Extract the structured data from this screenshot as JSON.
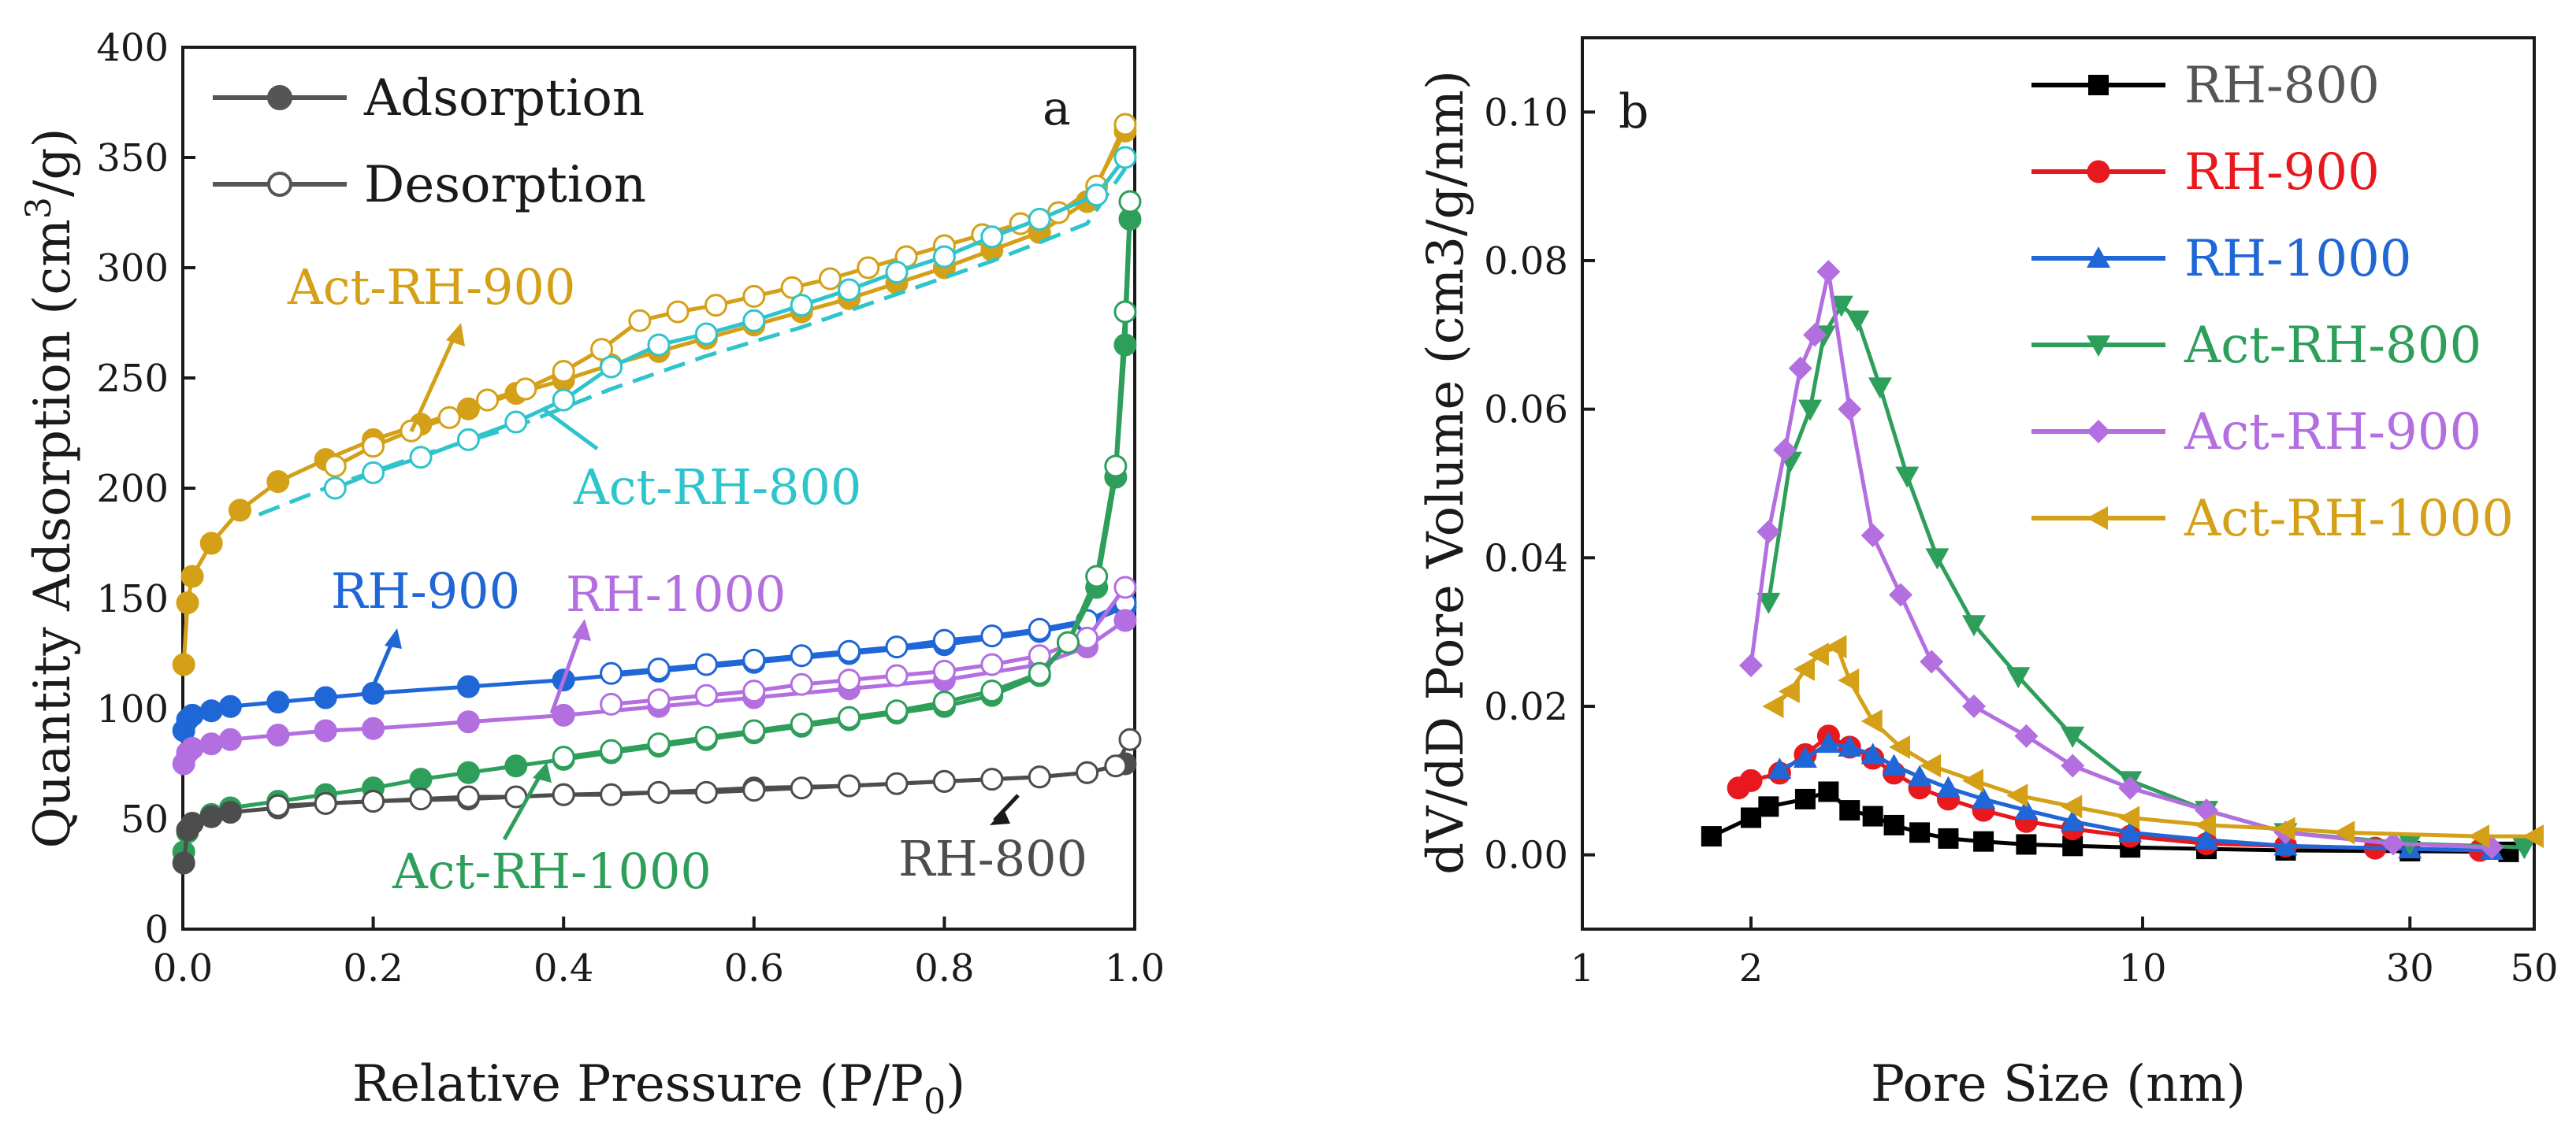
{
  "chart_data": [
    {
      "panel_label": "a",
      "type": "line",
      "title": "",
      "xlabel": "Relative Pressure (P/P",
      "xlabel_sub": "0",
      "xlabel_end": ")",
      "ylabel": "Quantity Adsorption (cm",
      "ylabel_sup": "3",
      "ylabel_end": "/g)",
      "xlim": [
        0,
        1.0
      ],
      "ylim": [
        0,
        400
      ],
      "xticks": [
        "0.0",
        "0.2",
        "0.4",
        "0.6",
        "0.8",
        "1.0"
      ],
      "yticks": [
        "0",
        "50",
        "100",
        "150",
        "200",
        "250",
        "300",
        "350",
        "400"
      ],
      "xtick_values": [
        0,
        0.2,
        0.4,
        0.6,
        0.8,
        1.0
      ],
      "ytick_values": [
        0,
        50,
        100,
        150,
        200,
        250,
        300,
        350,
        400
      ],
      "legend": [
        {
          "label": "Adsorption",
          "marker": "filled-circle",
          "color": "#555555"
        },
        {
          "label": "Desorption",
          "marker": "open-circle",
          "color": "#555555"
        }
      ],
      "series": [
        {
          "name": "Act-RH-900",
          "color": "#d4a017",
          "branch": "adsorption",
          "x": [
            0.001,
            0.005,
            0.01,
            0.03,
            0.06,
            0.1,
            0.15,
            0.2,
            0.25,
            0.3,
            0.35,
            0.4,
            0.45,
            0.5,
            0.55,
            0.6,
            0.65,
            0.7,
            0.75,
            0.8,
            0.85,
            0.9,
            0.95,
            0.99
          ],
          "y": [
            120,
            148,
            160,
            175,
            190,
            203,
            213,
            222,
            229,
            236,
            243,
            249,
            256,
            262,
            268,
            274,
            280,
            286,
            293,
            300,
            308,
            316,
            330,
            362
          ]
        },
        {
          "name": "Act-RH-900",
          "color": "#d4a017",
          "branch": "desorption",
          "x": [
            0.99,
            0.96,
            0.92,
            0.88,
            0.84,
            0.8,
            0.76,
            0.72,
            0.68,
            0.64,
            0.6,
            0.56,
            0.52,
            0.48,
            0.44,
            0.4,
            0.36,
            0.32,
            0.28,
            0.24,
            0.2,
            0.16
          ],
          "y": [
            365,
            337,
            325,
            320,
            315,
            310,
            305,
            300,
            295,
            291,
            287,
            283,
            280,
            276,
            263,
            253,
            245,
            240,
            232,
            226,
            219,
            210
          ]
        },
        {
          "name": "Act-RH-800",
          "color": "#2ec4cc",
          "branch": "adsorption",
          "x": [
            0.08,
            0.15,
            0.25,
            0.35,
            0.45,
            0.55,
            0.65,
            0.75,
            0.85,
            0.95,
            0.99
          ],
          "y": [
            188,
            200,
            215,
            228,
            245,
            260,
            273,
            288,
            303,
            320,
            345
          ]
        },
        {
          "name": "Act-RH-800",
          "color": "#2ec4cc",
          "branch": "desorption",
          "x": [
            0.99,
            0.96,
            0.9,
            0.85,
            0.8,
            0.75,
            0.7,
            0.65,
            0.6,
            0.55,
            0.5,
            0.45,
            0.4,
            0.35,
            0.3,
            0.25,
            0.2,
            0.16
          ],
          "y": [
            350,
            333,
            322,
            314,
            305,
            298,
            290,
            283,
            276,
            270,
            265,
            255,
            240,
            230,
            222,
            214,
            207,
            200
          ]
        },
        {
          "name": "RH-900",
          "color": "#1f66d6",
          "branch": "adsorption",
          "x": [
            0.001,
            0.005,
            0.01,
            0.03,
            0.05,
            0.1,
            0.15,
            0.2,
            0.3,
            0.4,
            0.5,
            0.6,
            0.7,
            0.8,
            0.9,
            0.95,
            0.99
          ],
          "y": [
            90,
            95,
            97,
            99,
            101,
            103,
            105,
            107,
            110,
            113,
            117,
            121,
            125,
            129,
            135,
            139,
            146
          ]
        },
        {
          "name": "RH-900",
          "color": "#1f66d6",
          "branch": "desorption",
          "x": [
            0.99,
            0.95,
            0.9,
            0.85,
            0.8,
            0.75,
            0.7,
            0.65,
            0.6,
            0.55,
            0.5,
            0.45
          ],
          "y": [
            148,
            140,
            136,
            133,
            131,
            128,
            126,
            124,
            122,
            120,
            118,
            116
          ]
        },
        {
          "name": "RH-1000",
          "color": "#b36ee0",
          "branch": "adsorption",
          "x": [
            0.001,
            0.005,
            0.01,
            0.03,
            0.05,
            0.1,
            0.15,
            0.2,
            0.3,
            0.4,
            0.5,
            0.6,
            0.7,
            0.8,
            0.9,
            0.95,
            0.99
          ],
          "y": [
            75,
            80,
            82,
            84,
            86,
            88,
            90,
            91,
            94,
            97,
            101,
            105,
            109,
            113,
            120,
            128,
            140
          ]
        },
        {
          "name": "RH-1000",
          "color": "#b36ee0",
          "branch": "desorption",
          "x": [
            0.99,
            0.95,
            0.9,
            0.85,
            0.8,
            0.75,
            0.7,
            0.65,
            0.6,
            0.55,
            0.5,
            0.45
          ],
          "y": [
            155,
            132,
            124,
            120,
            117,
            115,
            113,
            111,
            108,
            106,
            104,
            102
          ]
        },
        {
          "name": "Act-RH-1000",
          "color": "#2e9e5b",
          "branch": "adsorption",
          "x": [
            0.001,
            0.005,
            0.01,
            0.03,
            0.05,
            0.1,
            0.15,
            0.2,
            0.25,
            0.3,
            0.35,
            0.4,
            0.45,
            0.5,
            0.55,
            0.6,
            0.65,
            0.7,
            0.75,
            0.8,
            0.85,
            0.9,
            0.93,
            0.96,
            0.98,
            0.99,
            0.995
          ],
          "y": [
            35,
            44,
            48,
            52,
            55,
            58,
            61,
            64,
            68,
            71,
            74,
            77,
            80,
            83,
            86,
            89,
            92,
            95,
            98,
            101,
            106,
            115,
            130,
            155,
            205,
            265,
            322
          ]
        },
        {
          "name": "Act-RH-1000",
          "color": "#2e9e5b",
          "branch": "desorption",
          "x": [
            0.995,
            0.99,
            0.98,
            0.96,
            0.93,
            0.9,
            0.85,
            0.8,
            0.75,
            0.7,
            0.65,
            0.6,
            0.55,
            0.5,
            0.45,
            0.4
          ],
          "y": [
            330,
            280,
            210,
            160,
            130,
            116,
            108,
            103,
            99,
            96,
            93,
            90,
            87,
            84,
            81,
            78
          ]
        },
        {
          "name": "RH-800",
          "color": "#4d4d4d",
          "branch": "adsorption",
          "x": [
            0.001,
            0.005,
            0.01,
            0.03,
            0.05,
            0.1,
            0.15,
            0.2,
            0.3,
            0.4,
            0.5,
            0.6,
            0.7,
            0.8,
            0.9,
            0.95,
            0.99
          ],
          "y": [
            30,
            45,
            48,
            51,
            53,
            55,
            57,
            58,
            59,
            61,
            62,
            64,
            65,
            67,
            69,
            71,
            75
          ]
        },
        {
          "name": "RH-800",
          "color": "#4d4d4d",
          "branch": "desorption",
          "x": [
            0.995,
            0.98,
            0.95,
            0.9,
            0.85,
            0.8,
            0.75,
            0.7,
            0.65,
            0.6,
            0.55,
            0.5,
            0.45,
            0.4,
            0.35,
            0.3,
            0.25,
            0.2,
            0.15,
            0.1
          ],
          "y": [
            86,
            74,
            71,
            69,
            68,
            67,
            66,
            65,
            64,
            63,
            62,
            62,
            61,
            61,
            60,
            60,
            59,
            58,
            57,
            56
          ]
        }
      ],
      "annotations": [
        {
          "text": "Act-RH-900",
          "color": "#d4a017"
        },
        {
          "text": "Act-RH-800",
          "color": "#2ec4cc"
        },
        {
          "text": "RH-900",
          "color": "#1f66d6"
        },
        {
          "text": "RH-1000",
          "color": "#b36ee0"
        },
        {
          "text": "Act-RH-1000",
          "color": "#2e9e5b"
        },
        {
          "text": "RH-800",
          "color": "#4d4d4d"
        }
      ]
    },
    {
      "panel_label": "b",
      "type": "line",
      "title": "",
      "xlabel": "Pore Size (nm)",
      "ylabel": "dV/dD Pore Volume (cm3/g/nm)",
      "xscale": "log",
      "xlim": [
        1,
        50
      ],
      "ylim": [
        -0.01,
        0.11
      ],
      "xticks": [
        "1",
        "2",
        "10",
        "30",
        "50"
      ],
      "xtick_values": [
        1,
        2,
        10,
        30,
        50
      ],
      "yticks": [
        "0.00",
        "0.02",
        "0.04",
        "0.06",
        "0.08",
        "0.10"
      ],
      "ytick_values": [
        0,
        0.02,
        0.04,
        0.06,
        0.08,
        0.1
      ],
      "series": [
        {
          "name": "RH-800",
          "color": "#000000",
          "marker": "square",
          "x": [
            1.7,
            2.0,
            2.15,
            2.5,
            2.75,
            3.0,
            3.3,
            3.6,
            4.0,
            4.5,
            5.2,
            6.2,
            7.5,
            9.5,
            13,
            18,
            30,
            45
          ],
          "y": [
            0.0025,
            0.005,
            0.0065,
            0.0075,
            0.0085,
            0.006,
            0.0052,
            0.004,
            0.003,
            0.0022,
            0.0018,
            0.0014,
            0.0012,
            0.001,
            0.0008,
            0.0006,
            0.0005,
            0.0004
          ]
        },
        {
          "name": "RH-900",
          "color": "#e8191e",
          "marker": "circle",
          "x": [
            1.9,
            2.0,
            2.25,
            2.5,
            2.75,
            3.0,
            3.3,
            3.6,
            4.0,
            4.5,
            5.2,
            6.2,
            7.5,
            9.5,
            13,
            18,
            26,
            40
          ],
          "y": [
            0.009,
            0.01,
            0.011,
            0.0135,
            0.016,
            0.0145,
            0.013,
            0.011,
            0.009,
            0.0075,
            0.006,
            0.0045,
            0.0035,
            0.0025,
            0.0015,
            0.0012,
            0.0009,
            0.0006
          ]
        },
        {
          "name": "RH-1000",
          "color": "#1f66d6",
          "marker": "triangle-up",
          "x": [
            2.25,
            2.5,
            2.75,
            3.0,
            3.3,
            3.6,
            4.0,
            4.5,
            5.2,
            6.2,
            7.5,
            9.5,
            13,
            18,
            30,
            42
          ],
          "y": [
            0.0115,
            0.013,
            0.015,
            0.0145,
            0.0135,
            0.012,
            0.0105,
            0.009,
            0.0075,
            0.006,
            0.0045,
            0.003,
            0.002,
            0.0012,
            0.0008,
            0.0006
          ]
        },
        {
          "name": "Act-RH-800",
          "color": "#2e9e5b",
          "marker": "triangle-down",
          "x": [
            2.15,
            2.35,
            2.55,
            2.7,
            2.9,
            3.1,
            3.4,
            3.8,
            4.3,
            5.0,
            6.0,
            7.5,
            9.5,
            13,
            18,
            30,
            48
          ],
          "y": [
            0.034,
            0.053,
            0.06,
            0.07,
            0.074,
            0.072,
            0.063,
            0.051,
            0.04,
            0.031,
            0.024,
            0.016,
            0.01,
            0.006,
            0.003,
            0.0015,
            0.001
          ]
        },
        {
          "name": "Act-RH-900",
          "color": "#b36ee0",
          "marker": "diamond",
          "x": [
            2.0,
            2.15,
            2.3,
            2.45,
            2.6,
            2.75,
            3.0,
            3.3,
            3.7,
            4.2,
            5.0,
            6.2,
            7.5,
            9.5,
            13,
            18,
            28,
            42
          ],
          "y": [
            0.0255,
            0.0435,
            0.0545,
            0.0655,
            0.07,
            0.0785,
            0.06,
            0.043,
            0.035,
            0.026,
            0.02,
            0.016,
            0.012,
            0.009,
            0.006,
            0.003,
            0.0015,
            0.001
          ]
        },
        {
          "name": "Act-RH-1000",
          "color": "#d4a017",
          "marker": "triangle-left",
          "x": [
            2.2,
            2.35,
            2.5,
            2.65,
            2.85,
            3.0,
            3.3,
            3.7,
            4.2,
            5.0,
            6.0,
            7.5,
            9.5,
            13,
            18,
            23,
            40,
            50
          ],
          "y": [
            0.02,
            0.022,
            0.025,
            0.027,
            0.028,
            0.0235,
            0.018,
            0.0145,
            0.012,
            0.01,
            0.008,
            0.0065,
            0.005,
            0.004,
            0.0035,
            0.003,
            0.0025,
            0.0025
          ]
        }
      ]
    }
  ]
}
